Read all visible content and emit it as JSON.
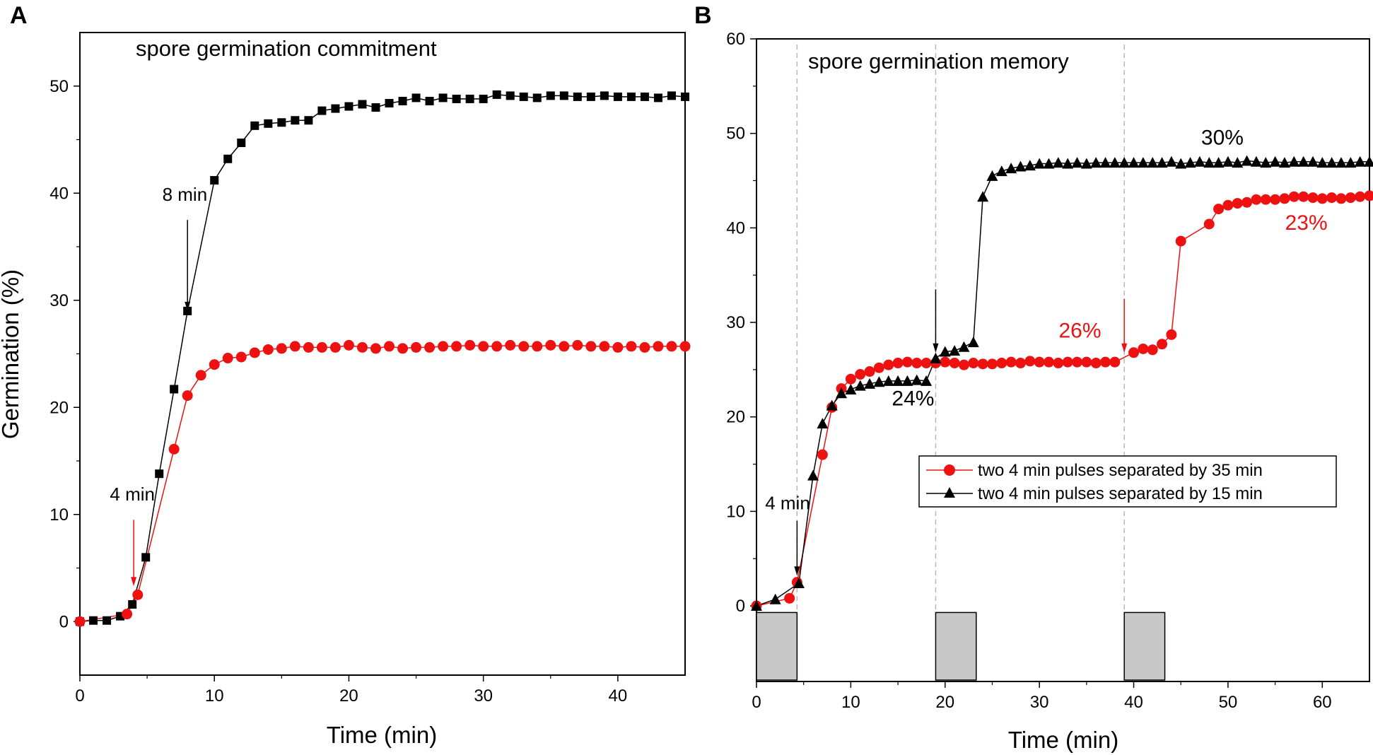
{
  "colors": {
    "red": "#ee1111",
    "black": "#000000",
    "gray_box": "#c8c8c8",
    "dash": "#b8b8b8"
  },
  "chart_data": [
    {
      "panel": "A",
      "type": "line",
      "title": "spore germination commitment",
      "xlabel": "Time (min)",
      "ylabel": "Germination (%)",
      "xlim": [
        0,
        45
      ],
      "ylim": [
        -5,
        55
      ],
      "xticks": [
        "0",
        "10",
        "20",
        "30",
        "40"
      ],
      "yticks": [
        "0",
        "10",
        "20",
        "30",
        "40",
        "50"
      ],
      "series": [
        {
          "name": "8 min",
          "color": "black",
          "marker": "square",
          "x": [
            0,
            1,
            2,
            3,
            3.9,
            4.9,
            5.9,
            7,
            8,
            10,
            11,
            12,
            13,
            14,
            15,
            16,
            17,
            18,
            19,
            20,
            21,
            22,
            23,
            24,
            25,
            26,
            27,
            28,
            29,
            30,
            31,
            32,
            33,
            34,
            35,
            36,
            37,
            38,
            39,
            40,
            41,
            42,
            43,
            44,
            45
          ],
          "values": [
            0,
            0.1,
            0.1,
            0.5,
            1.6,
            6,
            13.8,
            21.7,
            29,
            41.2,
            43.2,
            44.7,
            46.3,
            46.5,
            46.6,
            46.8,
            46.8,
            47.7,
            47.9,
            48.1,
            48.3,
            48,
            48.4,
            48.6,
            48.9,
            48.6,
            48.9,
            48.8,
            48.8,
            48.8,
            49.2,
            49.1,
            49,
            48.9,
            49.1,
            49.1,
            49,
            49,
            49.1,
            49,
            49,
            49,
            48.9,
            49.1,
            49
          ]
        },
        {
          "name": "4 min",
          "color": "red",
          "marker": "circle",
          "x": [
            0,
            3.5,
            4.3,
            7,
            8,
            9,
            10,
            11,
            12,
            13,
            14,
            15,
            16,
            17,
            18,
            19,
            20,
            21,
            22,
            23,
            24,
            25,
            26,
            27,
            28,
            29,
            30,
            31,
            32,
            33,
            34,
            35,
            36,
            37,
            38,
            39,
            40,
            41,
            42,
            43,
            44,
            45
          ],
          "values": [
            0,
            0.7,
            2.5,
            16.1,
            21.1,
            23,
            24,
            24.6,
            24.7,
            25.1,
            25.4,
            25.5,
            25.7,
            25.6,
            25.6,
            25.6,
            25.8,
            25.6,
            25.5,
            25.7,
            25.5,
            25.6,
            25.6,
            25.7,
            25.7,
            25.8,
            25.7,
            25.7,
            25.8,
            25.7,
            25.7,
            25.8,
            25.7,
            25.8,
            25.7,
            25.7,
            25.6,
            25.7,
            25.6,
            25.7,
            25.7,
            25.7
          ]
        }
      ],
      "annotations": [
        {
          "text": "8 min",
          "color": "black",
          "arrow_x": 8,
          "arrow_from_y": 37.5,
          "arrow_to_y": 29,
          "label_x": 7.8,
          "label_y": 39.3
        },
        {
          "text": "4 min",
          "color": "red",
          "arrow_x": 4,
          "arrow_from_y": 9.5,
          "arrow_to_y": 3.3,
          "label_x": 3.9,
          "label_y": 11.3
        }
      ]
    },
    {
      "panel": "B",
      "type": "line",
      "title": "spore germination memory",
      "xlabel": "Time (min)",
      "ylabel": "",
      "xlim": [
        0,
        65
      ],
      "ylim": [
        -8,
        60
      ],
      "xticks": [
        "0",
        "10",
        "20",
        "30",
        "40",
        "50",
        "60"
      ],
      "yticks": [
        "0",
        "10",
        "20",
        "30",
        "40",
        "50",
        "60"
      ],
      "legend_position": "center-right",
      "series": [
        {
          "name": "two 4 min pulses separated by 35 min",
          "color": "red",
          "marker": "circle",
          "x": [
            0,
            3.5,
            4.3,
            7,
            8,
            9,
            10,
            11,
            12,
            13,
            14,
            15,
            16,
            17,
            18,
            19,
            20,
            21,
            22,
            23,
            24,
            25,
            26,
            27,
            28,
            29,
            30,
            31,
            32,
            33,
            34,
            35,
            36,
            37,
            38,
            40,
            41,
            42,
            43,
            44,
            45,
            48,
            49,
            50,
            51,
            52,
            53,
            54,
            55,
            56,
            57,
            58,
            59,
            60,
            61,
            62,
            63,
            64,
            65
          ],
          "values": [
            0,
            0.8,
            2.5,
            16,
            21,
            23,
            24,
            24.5,
            24.8,
            25.2,
            25.5,
            25.7,
            25.8,
            25.7,
            25.7,
            25.7,
            25.8,
            25.7,
            25.5,
            25.7,
            25.6,
            25.6,
            25.7,
            25.8,
            25.7,
            25.9,
            25.8,
            25.8,
            25.7,
            25.8,
            25.8,
            25.8,
            25.7,
            25.8,
            25.8,
            26.8,
            27.2,
            27.1,
            27.7,
            28.7,
            38.6,
            40.4,
            42,
            42.4,
            42.6,
            42.7,
            43,
            43,
            43,
            43.1,
            43.3,
            43.3,
            43.2,
            43.1,
            43.2,
            43.1,
            43.2,
            43.3,
            43.4
          ]
        },
        {
          "name": "two 4 min pulses separated by 15 min",
          "color": "black",
          "marker": "triangle",
          "x": [
            0,
            2,
            4.5,
            6,
            7,
            8,
            9,
            10,
            11,
            12,
            13,
            14,
            15,
            16,
            17,
            18,
            19,
            20,
            21,
            22,
            23,
            24,
            25,
            26,
            27,
            28,
            29,
            30,
            31,
            32,
            33,
            34,
            35,
            36,
            37,
            38,
            39,
            40,
            41,
            42,
            43,
            44,
            45,
            46,
            47,
            48,
            49,
            50,
            51,
            52,
            53,
            54,
            55,
            56,
            57,
            58,
            59,
            60,
            61,
            62,
            63,
            64,
            65
          ],
          "values": [
            0,
            0.7,
            2.4,
            13.8,
            19.3,
            21.2,
            22.5,
            22.9,
            23.3,
            23.5,
            23.7,
            23.8,
            23.8,
            23.8,
            23.9,
            23.8,
            26.2,
            26.9,
            27,
            27.4,
            27.9,
            43.3,
            45.5,
            46,
            46.3,
            46.5,
            46.6,
            46.8,
            46.8,
            46.9,
            46.8,
            46.9,
            46.8,
            46.9,
            46.9,
            46.9,
            46.9,
            46.9,
            46.9,
            46.9,
            46.9,
            47,
            46.8,
            46.9,
            47,
            46.9,
            46.9,
            47,
            46.9,
            47.1,
            47,
            46.9,
            47,
            46.9,
            47,
            47,
            47,
            46.9,
            46.9,
            46.9,
            46.9,
            47,
            47
          ]
        }
      ],
      "pulse_boxes": [
        {
          "x_start": 0,
          "x_end": 4.3
        },
        {
          "x_start": 19,
          "x_end": 23.3
        },
        {
          "x_start": 39,
          "x_end": 43.3
        }
      ],
      "dashed_lines_x": [
        4.3,
        19,
        39
      ],
      "annotations": [
        {
          "text": "4 min",
          "color": "black",
          "arrow_x": 4.3,
          "arrow_from_y": 9,
          "arrow_to_y": 3.2,
          "label_x": 3.3,
          "label_y": 10.2
        },
        {
          "text": "",
          "color": "black",
          "arrow_x": 19,
          "arrow_from_y": 33.5,
          "arrow_to_y": 26.8
        },
        {
          "text": "",
          "color": "red",
          "arrow_x": 39,
          "arrow_from_y": 32.5,
          "arrow_to_y": 26.8
        }
      ],
      "percent_labels": [
        {
          "text": "24%",
          "color": "black",
          "x": 16.6,
          "y": 21.2
        },
        {
          "text": "26%",
          "color": "red",
          "x": 34.3,
          "y": 28.4
        },
        {
          "text": "30%",
          "color": "black",
          "x": 49.4,
          "y": 48.8
        },
        {
          "text": "23%",
          "color": "red",
          "x": 58.3,
          "y": 39.8
        }
      ]
    }
  ]
}
